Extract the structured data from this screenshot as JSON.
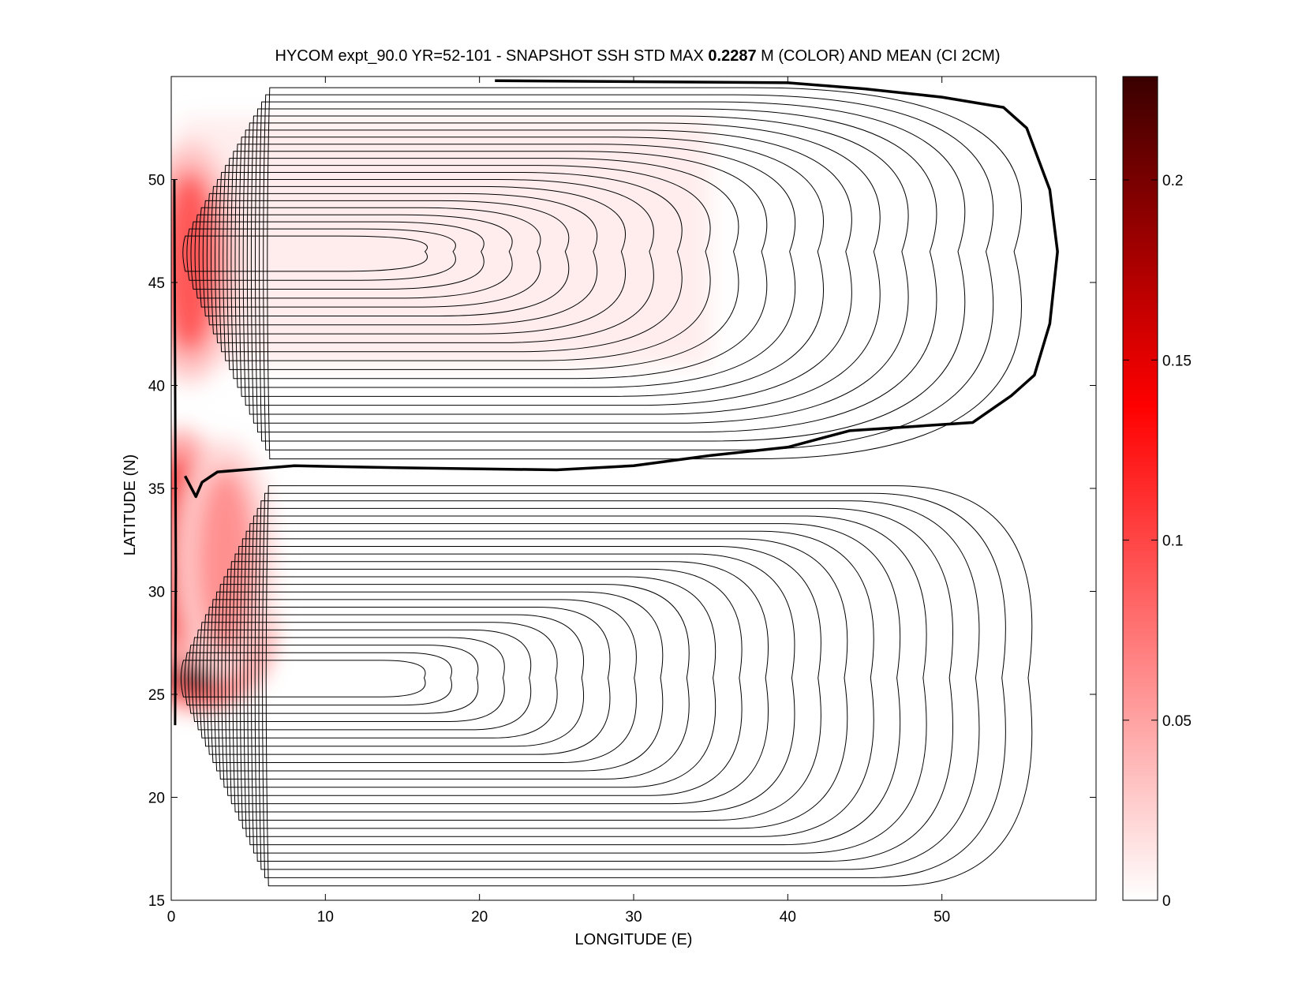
{
  "chart_data": {
    "type": "heatmap",
    "title_parts": {
      "pre": "HYCOM expt_90.0 YR=52-101 - SNAPSHOT SSH STD MAX ",
      "max": "0.2287",
      "post": " M (COLOR) AND MEAN (CI 2CM)"
    },
    "xlabel": "LONGITUDE (E)",
    "ylabel": "LATITUDE (N)",
    "xlim": [
      0,
      60
    ],
    "ylim": [
      15,
      55
    ],
    "xticks": [
      0,
      10,
      20,
      30,
      40,
      50
    ],
    "yticks": [
      15,
      20,
      25,
      30,
      35,
      40,
      45,
      50
    ],
    "colorbar": {
      "range": [
        0,
        0.2287
      ],
      "ticks": [
        0,
        0.05,
        0.1,
        0.15,
        0.2
      ],
      "tick_labels": [
        "0",
        "0.05",
        "0.1",
        "0.15",
        "0.2"
      ],
      "colormap": [
        "#ffffff",
        "#ff0000",
        "#3a0000"
      ]
    },
    "std_maxima": [
      {
        "lon": 1.8,
        "lat": 28.2,
        "value": 0.2287
      },
      {
        "lon": 0.6,
        "lat": 32.0,
        "value": 0.14
      },
      {
        "lon": 1.2,
        "lat": 46.0,
        "value": 0.09
      },
      {
        "lon": 3.5,
        "lat": 31.5,
        "value": 0.06
      }
    ],
    "zero_contour": [
      [
        21,
        54.8
      ],
      [
        40,
        54.7
      ],
      [
        45,
        54.4
      ],
      [
        50,
        54.0
      ],
      [
        54,
        53.5
      ],
      [
        55.5,
        52.5
      ],
      [
        57,
        49.5
      ],
      [
        57.5,
        46.5
      ],
      [
        57,
        43
      ],
      [
        56,
        40.5
      ],
      [
        54.5,
        39.5
      ],
      [
        52,
        38.2
      ],
      [
        48,
        38.0
      ],
      [
        44,
        37.8
      ],
      [
        40,
        37.0
      ],
      [
        35,
        36.6
      ],
      [
        30,
        36.1
      ],
      [
        25,
        35.9
      ],
      [
        15,
        36.0
      ],
      [
        8,
        36.1
      ],
      [
        3,
        35.8
      ],
      [
        2,
        35.3
      ],
      [
        1.6,
        34.6
      ],
      [
        0.9,
        35.6
      ]
    ],
    "subpolar_gyre": {
      "west": 0.5,
      "east": 57.5,
      "north": 54.8,
      "south": 36.0,
      "center_lat": 46.5,
      "sharpness": 1.0
    },
    "subtropical_gyre": {
      "west": 0.4,
      "east": 58.3,
      "north": 35.5,
      "south": 15.3,
      "center_lat": 25.8,
      "sharpness": 0.5
    }
  }
}
